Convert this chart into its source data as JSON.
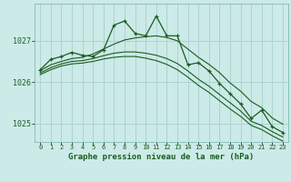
{
  "bg_color": "#cceae7",
  "grid_color": "#aad4d0",
  "line_color": "#1a5c20",
  "xlabel": "Graphe pression niveau de la mer (hPa)",
  "xlim": [
    -0.5,
    23.5
  ],
  "ylim": [
    1024.55,
    1027.9
  ],
  "yticks": [
    1025,
    1026,
    1027
  ],
  "line1_x": [
    0,
    1,
    2,
    3,
    4,
    5,
    6,
    7,
    8,
    9,
    10,
    11,
    12,
    13,
    14,
    15,
    16,
    17,
    18,
    19,
    20,
    21,
    22,
    23
  ],
  "line1_y": [
    1026.3,
    1026.55,
    1026.62,
    1026.72,
    1026.65,
    1026.62,
    1026.78,
    1027.38,
    1027.48,
    1027.18,
    1027.12,
    1027.6,
    1027.12,
    1027.12,
    1026.42,
    1026.47,
    1026.27,
    1025.97,
    1025.72,
    1025.47,
    1025.12,
    1025.32,
    1024.92,
    1024.78
  ],
  "line2_x": [
    0,
    1,
    2,
    3,
    4,
    5,
    6,
    7,
    8,
    9,
    10,
    11,
    12,
    13,
    14,
    15,
    16,
    17,
    18,
    19,
    20,
    21,
    22,
    23
  ],
  "line2_y": [
    1026.28,
    1026.42,
    1026.5,
    1026.57,
    1026.6,
    1026.68,
    1026.8,
    1026.92,
    1027.02,
    1027.07,
    1027.1,
    1027.12,
    1027.08,
    1027.0,
    1026.8,
    1026.6,
    1026.43,
    1026.23,
    1025.98,
    1025.78,
    1025.53,
    1025.38,
    1025.13,
    1024.98
  ],
  "line3_x": [
    0,
    1,
    2,
    3,
    4,
    5,
    6,
    7,
    8,
    9,
    10,
    11,
    12,
    13,
    14,
    15,
    16,
    17,
    18,
    19,
    20,
    21,
    22,
    23
  ],
  "line3_y": [
    1026.22,
    1026.35,
    1026.44,
    1026.5,
    1026.52,
    1026.57,
    1026.64,
    1026.7,
    1026.73,
    1026.73,
    1026.7,
    1026.65,
    1026.57,
    1026.45,
    1026.27,
    1026.07,
    1025.9,
    1025.7,
    1025.5,
    1025.3,
    1025.05,
    1024.95,
    1024.8,
    1024.67
  ],
  "line4_x": [
    0,
    1,
    2,
    3,
    4,
    5,
    6,
    7,
    8,
    9,
    10,
    11,
    12,
    13,
    14,
    15,
    16,
    17,
    18,
    19,
    20,
    21,
    22,
    23
  ],
  "line4_y": [
    1026.18,
    1026.3,
    1026.39,
    1026.44,
    1026.46,
    1026.5,
    1026.56,
    1026.6,
    1026.62,
    1026.62,
    1026.58,
    1026.52,
    1026.43,
    1026.3,
    1026.12,
    1025.92,
    1025.75,
    1025.55,
    1025.35,
    1025.17,
    1024.95,
    1024.85,
    1024.7,
    1024.57
  ]
}
